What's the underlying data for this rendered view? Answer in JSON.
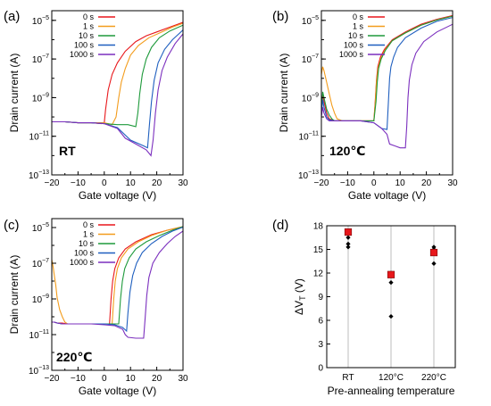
{
  "chart_data": [
    {
      "type": "line",
      "panel": "(a)",
      "annotation": "RT",
      "xlabel": "Gate voltage (V)",
      "ylabel": "Drain current (A)",
      "xlim": [
        -20,
        30
      ],
      "ylim_log10": [
        -13,
        -4.5
      ],
      "y_scale": "log",
      "xticks": [
        -20,
        -10,
        0,
        10,
        20,
        30
      ],
      "xtick_labels": [
        "−20",
        "−10",
        "0",
        "10",
        "20",
        "30"
      ],
      "yticks_log10": [
        -13,
        -11,
        -9,
        -7,
        -5
      ],
      "ytick_labels": [
        "10",
        "10",
        "10",
        "10",
        "10"
      ],
      "ytick_exponents": [
        "−13",
        "−11",
        "−9",
        "−7",
        "−5"
      ],
      "legend_position": "top-left",
      "series": [
        {
          "name": "0 s",
          "color": "#e8171b",
          "x": [
            -20,
            -15,
            -10,
            -5,
            -1,
            0,
            0.5,
            1.5,
            3,
            5,
            8,
            12,
            16,
            20,
            25,
            30
          ],
          "y_log10": [
            -10.25,
            -10.25,
            -10.3,
            -10.3,
            -10.35,
            -10.3,
            -9.6,
            -8.6,
            -7.8,
            -7.2,
            -6.6,
            -6.1,
            -5.8,
            -5.6,
            -5.35,
            -5.1
          ]
        },
        {
          "name": "1 s",
          "color": "#f39c1c",
          "x": [
            -20,
            -15,
            -10,
            -5,
            0,
            3,
            4.5,
            5.5,
            6.5,
            8,
            10,
            13,
            17,
            22,
            26,
            30
          ],
          "y_log10": [
            -10.25,
            -10.25,
            -10.3,
            -10.3,
            -10.3,
            -10.4,
            -10.0,
            -9.0,
            -8.2,
            -7.5,
            -6.8,
            -6.3,
            -5.9,
            -5.6,
            -5.35,
            -5.15
          ]
        },
        {
          "name": "10 s",
          "color": "#1e9a3b",
          "x": [
            -20,
            -15,
            -10,
            -5,
            0,
            5,
            9,
            12,
            12.8,
            13.5,
            14.5,
            16,
            18,
            21,
            25,
            30
          ],
          "y_log10": [
            -10.25,
            -10.25,
            -10.3,
            -10.3,
            -10.35,
            -10.4,
            -10.4,
            -10.5,
            -9.8,
            -8.8,
            -7.8,
            -7.0,
            -6.4,
            -5.9,
            -5.55,
            -5.25
          ]
        },
        {
          "name": "100 s",
          "color": "#1f5fbf",
          "x": [
            -20,
            -15,
            -10,
            -5,
            0,
            5,
            10,
            15,
            16.5,
            17.2,
            18,
            19,
            20.5,
            23,
            26,
            30
          ],
          "y_log10": [
            -10.25,
            -10.25,
            -10.3,
            -10.3,
            -10.35,
            -10.55,
            -11.2,
            -11.5,
            -11.6,
            -10.4,
            -9.2,
            -8.1,
            -7.2,
            -6.5,
            -6.0,
            -5.5
          ]
        },
        {
          "name": "1000 s",
          "color": "#7b2fbe",
          "x": [
            -20,
            -15,
            -10,
            -5,
            0,
            5,
            8,
            12,
            16,
            17.8,
            18.6,
            19.5,
            20.5,
            22,
            24,
            27,
            30
          ],
          "y_log10": [
            -10.25,
            -10.25,
            -10.3,
            -10.3,
            -10.35,
            -10.6,
            -11.1,
            -11.4,
            -11.7,
            -12.0,
            -11.2,
            -9.8,
            -8.6,
            -7.6,
            -6.9,
            -6.2,
            -5.7
          ]
        }
      ]
    },
    {
      "type": "line",
      "panel": "(b)",
      "annotation": "120℃",
      "xlabel": "Gate voltage (V)",
      "ylabel": "Drain current (A)",
      "xlim": [
        -20,
        30
      ],
      "ylim_log10": [
        -13,
        -4.5
      ],
      "y_scale": "log",
      "xticks": [
        -20,
        -10,
        0,
        10,
        20,
        30
      ],
      "xtick_labels": [
        "−20",
        "−10",
        "0",
        "10",
        "20",
        "30"
      ],
      "yticks_log10": [
        -13,
        -11,
        -9,
        -7,
        -5
      ],
      "ytick_labels": [
        "10",
        "10",
        "10",
        "10",
        "10"
      ],
      "ytick_exponents": [
        "−13",
        "−11",
        "−9",
        "−7",
        "−5"
      ],
      "legend_position": "top-left",
      "series": [
        {
          "name": "0 s",
          "color": "#e8171b",
          "x": [
            -20,
            -19.5,
            -19,
            -18,
            -17,
            -15,
            -10,
            -5,
            0,
            0.5,
            1,
            1.5,
            2.5,
            4,
            7,
            12,
            18,
            24,
            30
          ],
          "y_log10": [
            -9.4,
            -8.9,
            -9.2,
            -9.8,
            -10.1,
            -10.2,
            -10.2,
            -10.2,
            -10.2,
            -9.2,
            -8.1,
            -7.4,
            -6.9,
            -6.5,
            -6.0,
            -5.6,
            -5.2,
            -4.95,
            -4.75
          ]
        },
        {
          "name": "1 s",
          "color": "#f39c1c",
          "x": [
            -20,
            -19.5,
            -19,
            -18,
            -17,
            -16,
            -15,
            -14,
            -12,
            -10,
            -5,
            0,
            0.5,
            1,
            1.6,
            2.6,
            4.2,
            7,
            12,
            18,
            24,
            30
          ],
          "y_log10": [
            -7.8,
            -7.4,
            -7.6,
            -8.2,
            -8.8,
            -9.4,
            -9.8,
            -10.1,
            -10.2,
            -10.2,
            -10.2,
            -10.2,
            -9.3,
            -8.2,
            -7.5,
            -7.0,
            -6.55,
            -6.05,
            -5.65,
            -5.25,
            -4.98,
            -4.78
          ]
        },
        {
          "name": "10 s",
          "color": "#1e9a3b",
          "x": [
            -20,
            -19.5,
            -19,
            -18,
            -17,
            -16,
            -15,
            -10,
            -5,
            0,
            0.8,
            1.3,
            1.8,
            2.8,
            4.4,
            7,
            12,
            18,
            24,
            30
          ],
          "y_log10": [
            -9.7,
            -8.7,
            -9.0,
            -9.6,
            -9.9,
            -10.1,
            -10.2,
            -10.2,
            -10.2,
            -10.2,
            -9.2,
            -8.2,
            -7.5,
            -7.0,
            -6.55,
            -6.05,
            -5.65,
            -5.25,
            -4.98,
            -4.78
          ]
        },
        {
          "name": "100 s",
          "color": "#1f5fbf",
          "x": [
            -20,
            -19.5,
            -19,
            -18,
            -17,
            -15,
            -10,
            -5,
            0,
            3,
            5,
            5.5,
            6,
            6.5,
            7.5,
            9,
            12,
            18,
            24,
            30
          ],
          "y_log10": [
            -9.9,
            -9.1,
            -9.5,
            -10.0,
            -10.15,
            -10.2,
            -10.2,
            -10.2,
            -10.3,
            -10.6,
            -10.65,
            -9.3,
            -8.0,
            -7.4,
            -6.9,
            -6.4,
            -5.9,
            -5.4,
            -5.05,
            -4.85
          ]
        },
        {
          "name": "1000 s",
          "color": "#7b2fbe",
          "x": [
            -20,
            -19.5,
            -19,
            -18,
            -17,
            -15,
            -10,
            -5,
            0,
            3,
            5,
            6,
            8,
            10,
            12,
            12.5,
            13,
            13.5,
            14.5,
            16,
            19,
            24,
            30
          ],
          "y_log10": [
            -10.0,
            -9.5,
            -9.8,
            -10.1,
            -10.2,
            -10.2,
            -10.2,
            -10.2,
            -10.3,
            -10.6,
            -10.9,
            -11.4,
            -11.5,
            -11.6,
            -11.6,
            -10.5,
            -9.0,
            -8.1,
            -7.3,
            -6.7,
            -6.1,
            -5.6,
            -5.2
          ]
        }
      ]
    },
    {
      "type": "line",
      "panel": "(c)",
      "annotation": "220℃",
      "xlabel": "Gate voltage (V)",
      "ylabel": "Drain current (A)",
      "xlim": [
        -20,
        30
      ],
      "ylim_log10": [
        -13,
        -4.5
      ],
      "y_scale": "log",
      "xticks": [
        -20,
        -10,
        0,
        10,
        20,
        30
      ],
      "xtick_labels": [
        "−20",
        "−10",
        "0",
        "10",
        "20",
        "30"
      ],
      "yticks_log10": [
        -13,
        -11,
        -9,
        -7,
        -5
      ],
      "ytick_labels": [
        "10",
        "10",
        "10",
        "10",
        "10"
      ],
      "ytick_exponents": [
        "−13",
        "−11",
        "−9",
        "−7",
        "−5"
      ],
      "legend_position": "top-left",
      "series": [
        {
          "name": "0 s",
          "color": "#e8171b",
          "x": [
            -20,
            -19,
            -18,
            -16,
            -14,
            -10,
            -5,
            0,
            2,
            2.6,
            3.2,
            4,
            5.5,
            8,
            12,
            18,
            24,
            30
          ],
          "y_log10": [
            -10.3,
            -10.3,
            -10.35,
            -10.35,
            -10.4,
            -10.4,
            -10.4,
            -10.4,
            -10.4,
            -9.0,
            -8.0,
            -7.3,
            -6.7,
            -6.2,
            -5.8,
            -5.4,
            -5.15,
            -4.95
          ]
        },
        {
          "name": "1 s",
          "color": "#f39c1c",
          "x": [
            -20,
            -19.5,
            -19,
            -18.5,
            -18,
            -17,
            -16,
            -15,
            -14,
            -12,
            -10,
            -5,
            0,
            3,
            3.6,
            4.2,
            5,
            6.5,
            9,
            13,
            18,
            24,
            30
          ],
          "y_log10": [
            -6.8,
            -7.2,
            -7.7,
            -8.2,
            -8.9,
            -9.6,
            -10.0,
            -10.3,
            -10.4,
            -10.4,
            -10.4,
            -10.4,
            -10.4,
            -10.4,
            -9.0,
            -8.0,
            -7.3,
            -6.7,
            -6.2,
            -5.8,
            -5.45,
            -5.15,
            -4.95
          ]
        },
        {
          "name": "10 s",
          "color": "#1e9a3b",
          "x": [
            -20,
            -19,
            -18,
            -16,
            -14,
            -10,
            -5,
            0,
            3,
            5.5,
            6.2,
            6.9,
            7.8,
            9.5,
            12,
            16,
            21,
            26,
            30
          ],
          "y_log10": [
            -10.3,
            -10.3,
            -10.35,
            -10.4,
            -10.4,
            -10.4,
            -10.4,
            -10.4,
            -10.4,
            -10.4,
            -9.0,
            -8.0,
            -7.3,
            -6.7,
            -6.2,
            -5.8,
            -5.45,
            -5.15,
            -4.95
          ]
        },
        {
          "name": "100 s",
          "color": "#1f5fbf",
          "x": [
            -20,
            -19,
            -18,
            -16,
            -14,
            -10,
            -5,
            0,
            4,
            7,
            8.5,
            9,
            9.8,
            10.8,
            12.3,
            14.5,
            18,
            22,
            26,
            30
          ],
          "y_log10": [
            -10.3,
            -10.3,
            -10.35,
            -10.4,
            -10.4,
            -10.4,
            -10.4,
            -10.4,
            -10.45,
            -10.6,
            -10.8,
            -9.8,
            -8.6,
            -7.7,
            -7.0,
            -6.4,
            -5.9,
            -5.5,
            -5.2,
            -4.98
          ]
        },
        {
          "name": "1000 s",
          "color": "#7b2fbe",
          "x": [
            -20,
            -19,
            -18,
            -16,
            -14,
            -10,
            -5,
            0,
            4,
            7,
            8,
            9,
            12,
            15,
            15.6,
            16.2,
            17,
            18.5,
            21,
            24,
            27,
            30
          ],
          "y_log10": [
            -10.3,
            -10.3,
            -10.35,
            -10.4,
            -10.4,
            -10.4,
            -10.4,
            -10.45,
            -10.5,
            -10.7,
            -11.0,
            -11.15,
            -11.2,
            -11.2,
            -10.0,
            -8.8,
            -7.8,
            -7.0,
            -6.4,
            -5.9,
            -5.5,
            -5.2
          ]
        }
      ]
    },
    {
      "type": "scatter",
      "panel": "(d)",
      "xlabel": "Pre-annealing temperature",
      "ylabel_main": "ΔV",
      "ylabel_sub": "T",
      "ylabel_unit": " (V)",
      "categories": [
        "RT",
        "120°C",
        "220°C"
      ],
      "ylim": [
        0,
        18
      ],
      "yticks": [
        0,
        3,
        6,
        9,
        12,
        15,
        18
      ],
      "grid": "vertical-lines-at-categories",
      "series": [
        {
          "name": "",
          "marker": "diamond",
          "color": "#000000",
          "points": [
            [
              0,
              15.3
            ],
            [
              0,
              15.7
            ],
            [
              0,
              16.5
            ],
            [
              0,
              17.1
            ],
            [
              1,
              6.5
            ],
            [
              1,
              10.8
            ],
            [
              1,
              11.8
            ],
            [
              1,
              12.0
            ],
            [
              2,
              13.2
            ],
            [
              2,
              14.5
            ],
            [
              2,
              15.0
            ],
            [
              2,
              15.3
            ]
          ]
        },
        {
          "name": "",
          "marker": "square",
          "color": "#e8171b",
          "points": [
            [
              0,
              17.2
            ],
            [
              1,
              11.8
            ],
            [
              2,
              14.6
            ]
          ]
        }
      ]
    }
  ]
}
